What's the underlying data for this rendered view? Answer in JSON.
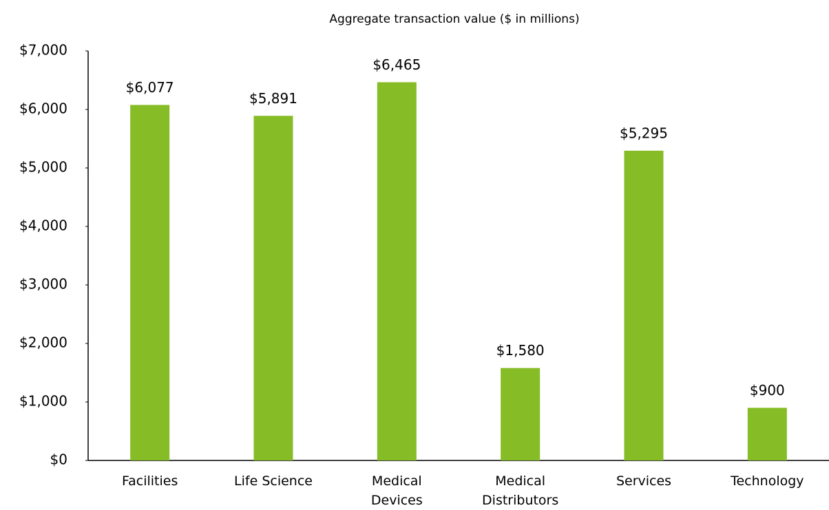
{
  "chart_data": {
    "type": "bar",
    "title": "Aggregate transaction value ($ in millions)",
    "categories": [
      "Facilities",
      "Life Science",
      "Medical Devices",
      "Medical Distributors",
      "Services",
      "Technology"
    ],
    "values": [
      6077,
      5891,
      6465,
      1580,
      5295,
      900
    ],
    "value_labels": [
      "$6,077",
      "$5,891",
      "$6,465",
      "$1,580",
      "$5,295",
      "$900"
    ],
    "color": "#86bc25",
    "ylim": [
      0,
      7000
    ],
    "yticks": [
      {
        "value": 0,
        "label": "$0"
      },
      {
        "value": 1000,
        "label": "$1,000"
      },
      {
        "value": 2000,
        "label": "$2,000"
      },
      {
        "value": 3000,
        "label": "$3,000"
      },
      {
        "value": 4000,
        "label": "$4,000"
      },
      {
        "value": 5000,
        "label": "$5,000"
      },
      {
        "value": 6000,
        "label": "$6,000"
      },
      {
        "value": 7000,
        "label": "$7,000"
      }
    ],
    "grid": false
  }
}
